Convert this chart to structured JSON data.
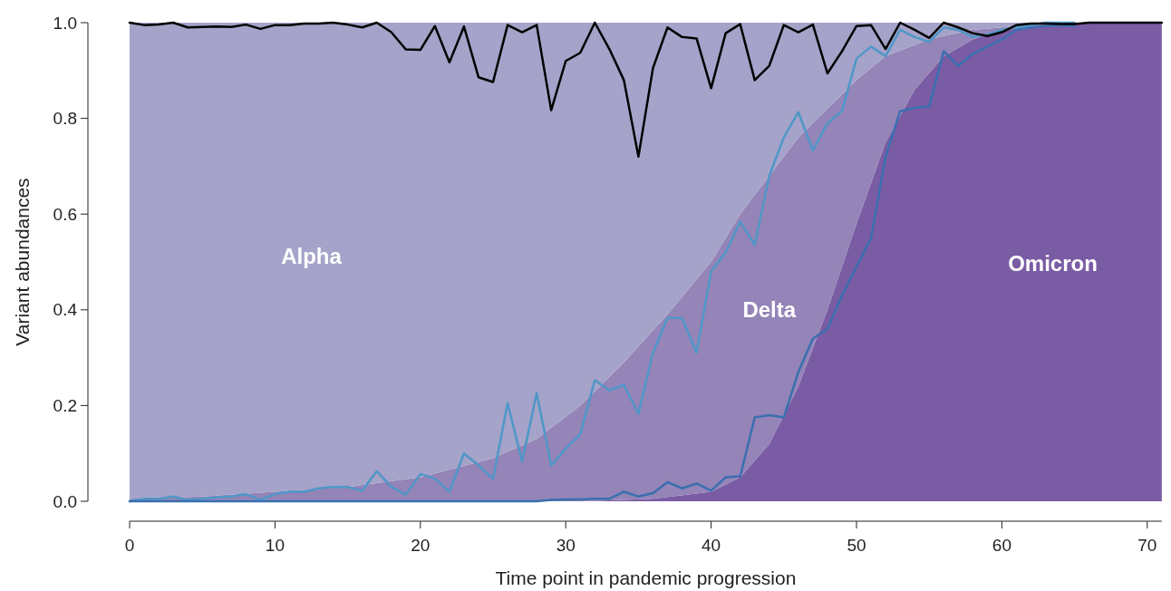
{
  "chart_data": {
    "type": "area",
    "stacked": true,
    "xlabel": "Time point in pandemic progression",
    "ylabel": "Variant abundances",
    "xlim": [
      0,
      71
    ],
    "ylim": [
      0,
      1
    ],
    "xticks": [
      0,
      10,
      20,
      30,
      40,
      50,
      60,
      70
    ],
    "yticks": [
      {
        "value": 0,
        "label": "0.0"
      },
      {
        "value": 0.2,
        "label": "0.2"
      },
      {
        "value": 0.4,
        "label": "0.4"
      },
      {
        "value": 0.6,
        "label": "0.6"
      },
      {
        "value": 0.8,
        "label": "0.8"
      },
      {
        "value": 1,
        "label": "1.0"
      }
    ],
    "x": [
      0,
      5,
      10,
      15,
      20,
      25,
      28,
      31,
      34,
      36,
      37,
      40,
      42,
      44,
      46,
      48,
      50,
      52,
      54,
      55,
      56,
      58,
      60,
      62,
      64,
      66,
      71
    ],
    "series": [
      {
        "name": "Omicron",
        "color": "#7a5ca4",
        "values": [
          0,
          0,
          0,
          0,
          0,
          0,
          0,
          0,
          0.003,
          0.005,
          0.009,
          0.02,
          0.05,
          0.12,
          0.24,
          0.4,
          0.58,
          0.75,
          0.86,
          0.895,
          0.93,
          0.965,
          0.985,
          0.991,
          0.997,
          0.998,
          1
        ]
      },
      {
        "name": "Delta",
        "color": "#9484b7",
        "values": [
          0.005,
          0.01,
          0.02,
          0.03,
          0.05,
          0.09,
          0.13,
          0.2,
          0.287,
          0.352,
          0.381,
          0.48,
          0.55,
          0.56,
          0.52,
          0.42,
          0.3,
          0.18,
          0.093,
          0.07,
          0.042,
          0.02,
          0.005,
          0.004,
          0.001,
          0.002,
          null
        ]
      },
      {
        "name": "Alpha",
        "color": "#a5a3c9",
        "values": [
          0.995,
          0.99,
          0.98,
          0.97,
          0.95,
          0.91,
          0.87,
          0.8,
          0.71,
          0.643,
          0.61,
          0.5,
          0.4,
          0.32,
          0.24,
          0.18,
          0.12,
          0.07,
          0.047,
          0.035,
          0.028,
          0.015,
          0.01,
          0.005,
          0.002,
          null,
          null
        ]
      },
      {
        "type": "line",
        "color": "#4f97c8",
        "x": [
          0,
          1,
          2,
          3,
          4,
          5,
          6,
          7,
          8,
          9,
          10,
          11,
          12,
          13,
          14,
          15,
          16,
          17,
          18,
          19,
          20,
          21,
          22,
          23,
          24,
          25,
          26,
          27,
          28,
          29,
          30,
          31,
          32,
          33,
          34,
          35,
          36,
          37,
          38,
          39,
          40,
          41,
          42,
          43,
          44,
          45,
          46,
          47,
          48,
          49,
          50,
          51,
          52,
          53,
          54,
          55,
          56,
          57,
          58,
          59,
          60,
          61,
          62,
          63,
          64,
          65
        ],
        "values": [
          0,
          0.005,
          0.005,
          0.01,
          0.003,
          0.005,
          0.008,
          0.01,
          0.015,
          0.003,
          0.015,
          0.02,
          0.02,
          0.027,
          0.03,
          0.03,
          0.022,
          0.063,
          0.03,
          0.014,
          0.057,
          0.047,
          0.02,
          0.1,
          0.075,
          0.047,
          0.205,
          0.083,
          0.226,
          0.075,
          0.11,
          0.14,
          0.253,
          0.232,
          0.243,
          0.183,
          0.31,
          0.383,
          0.383,
          0.31,
          0.48,
          0.52,
          0.584,
          0.535,
          0.68,
          0.76,
          0.813,
          0.733,
          0.79,
          0.815,
          0.925,
          0.95,
          0.93,
          0.985,
          0.97,
          0.96,
          0.99,
          0.985,
          0.97,
          0.975,
          0.985,
          0.99,
          0.995,
          1,
          1,
          1
        ]
      },
      {
        "type": "line",
        "color": "#3a6fb0",
        "x": [
          0,
          1,
          2,
          3,
          4,
          5,
          6,
          7,
          8,
          9,
          10,
          11,
          12,
          13,
          14,
          15,
          16,
          17,
          18,
          19,
          20,
          21,
          22,
          23,
          24,
          25,
          26,
          27,
          28,
          29,
          30,
          31,
          32,
          33,
          34,
          35,
          36,
          37,
          38,
          39,
          40,
          41,
          42,
          43,
          44,
          45,
          46,
          47,
          48,
          49,
          50,
          51,
          52,
          53,
          54,
          55,
          56,
          57,
          58,
          59,
          60,
          61,
          62,
          63,
          64,
          65
        ],
        "values": [
          0,
          0,
          0,
          0,
          0,
          0,
          0,
          0,
          0,
          0,
          0,
          0,
          0,
          0,
          0,
          0,
          0,
          0,
          0,
          0,
          0,
          0,
          0,
          0,
          0,
          0,
          0,
          0,
          0,
          0.003,
          0.004,
          0.004,
          0.005,
          0.005,
          0.02,
          0.01,
          0.017,
          0.04,
          0.027,
          0.037,
          0.022,
          0.05,
          0.052,
          0.175,
          0.18,
          0.175,
          0.27,
          0.34,
          0.36,
          0.43,
          0.49,
          0.55,
          0.72,
          0.815,
          0.822,
          0.825,
          0.94,
          0.91,
          0.935,
          0.95,
          0.965,
          0.985,
          0.99,
          0.993,
          0.995,
          0.993
        ]
      },
      {
        "type": "line",
        "color": "#000000",
        "x": [
          0,
          1,
          2,
          3,
          4,
          5,
          6,
          7,
          8,
          9,
          10,
          11,
          12,
          13,
          14,
          15,
          16,
          17,
          18,
          19,
          20,
          21,
          22,
          23,
          24,
          25,
          26,
          27,
          28,
          29,
          30,
          31,
          32,
          33,
          34,
          35,
          36,
          37,
          38,
          39,
          40,
          41,
          42,
          43,
          44,
          45,
          46,
          47,
          48,
          49,
          50,
          51,
          52,
          53,
          54,
          55,
          56,
          57,
          58,
          59,
          60,
          61,
          62,
          63,
          64,
          65,
          66,
          67,
          68,
          69,
          70,
          71
        ],
        "values": [
          1,
          0.995,
          0.996,
          1,
          0.99,
          0.991,
          0.992,
          0.991,
          0.996,
          0.987,
          0.995,
          0.995,
          0.998,
          0.998,
          1,
          0.996,
          0.99,
          1,
          0.98,
          0.944,
          0.943,
          0.993,
          0.917,
          0.992,
          0.886,
          0.876,
          0.995,
          0.98,
          0.995,
          0.817,
          0.92,
          0.937,
          1,
          0.945,
          0.88,
          0.72,
          0.905,
          0.99,
          0.97,
          0.967,
          0.863,
          0.978,
          0.997,
          0.88,
          0.91,
          0.995,
          0.98,
          0.996,
          0.894,
          0.94,
          0.993,
          0.995,
          0.945,
          1,
          0.985,
          0.968,
          1,
          0.99,
          0.978,
          0.972,
          0.98,
          0.995,
          0.998,
          0.998,
          0.997,
          0.997,
          1,
          1,
          1,
          1,
          1,
          1
        ]
      }
    ]
  }
}
